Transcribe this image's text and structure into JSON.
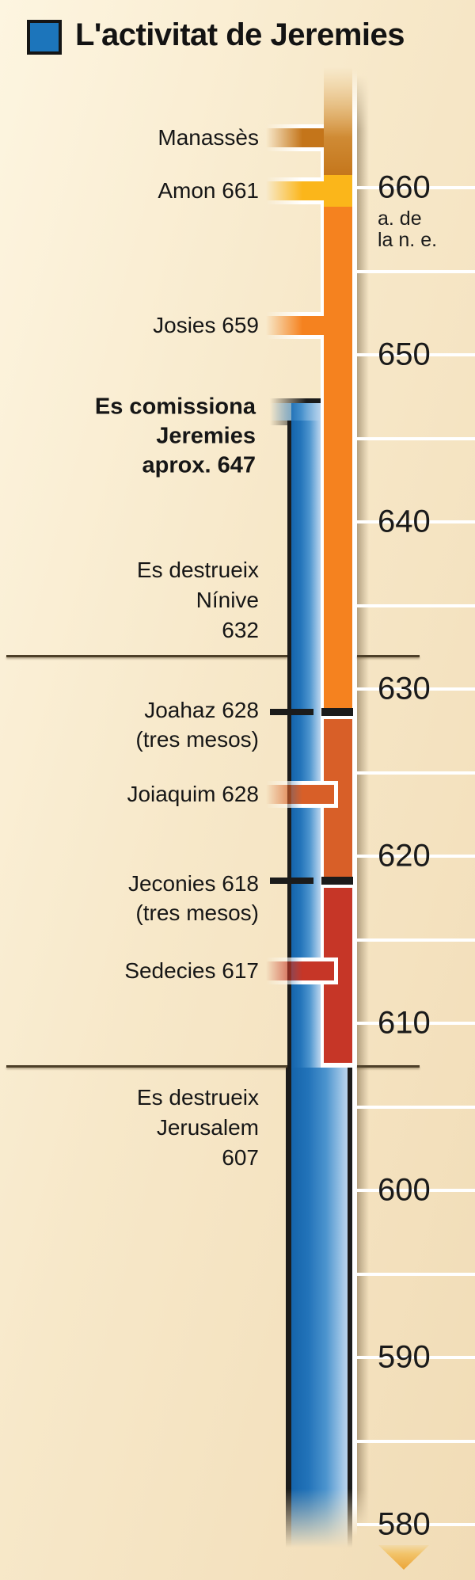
{
  "title": {
    "text": "L'activitat de Jeremies",
    "swatch_color": "#1C75BB"
  },
  "era_note": {
    "line1": "a. de",
    "line2": "la n. e."
  },
  "chart_data": {
    "type": "timeline",
    "title": "L'activitat de Jeremies",
    "orientation": "vertical, years BCE descending",
    "axis": {
      "top_year": 660,
      "bottom_year": 580,
      "tick_interval": 10,
      "grid_interval": 5,
      "era_label": "a. de la n. e.",
      "tick_years": [
        660,
        650,
        640,
        630,
        620,
        610,
        600,
        590,
        580
      ]
    },
    "jeremiah": {
      "label_lines": [
        "Es comissiona",
        "Jeremies",
        "aprox. 647"
      ],
      "start_year_approx": 647,
      "color": "#2273B9",
      "continues_below_axis": true
    },
    "kings": [
      {
        "id": "manasses",
        "label": "Manassès",
        "end_year": 661,
        "color": "#C4751A"
      },
      {
        "id": "amon",
        "label": "Amon 661",
        "start_year": 661,
        "end_year": 659,
        "color": "#FBB61A"
      },
      {
        "id": "josies",
        "label": "Josies 659",
        "start_year": 659,
        "end_year": 628,
        "color": "#F5821F"
      },
      {
        "id": "joahaz",
        "label": "Joahaz 628",
        "note": "(tres mesos)",
        "start_year": 628,
        "color": "#1B1B1B"
      },
      {
        "id": "joiaquim",
        "label": "Joiaquim 628",
        "start_year": 628,
        "end_year": 618,
        "color": "#D85F28"
      },
      {
        "id": "jeconies",
        "label": "Jeconies 618",
        "note": "(tres mesos)",
        "start_year": 618,
        "color": "#1B1B1B"
      },
      {
        "id": "sedecies",
        "label": "Sedecies 617",
        "start_year": 617,
        "end_year": 607,
        "color": "#C63627"
      }
    ],
    "events": [
      {
        "id": "ninive",
        "label_lines": [
          "Es destrueix",
          "Nínive",
          "632"
        ],
        "year": 632
      },
      {
        "id": "jerusalem",
        "label_lines": [
          "Es destrueix",
          "Jerusalem",
          "607"
        ],
        "year": 607
      }
    ]
  }
}
